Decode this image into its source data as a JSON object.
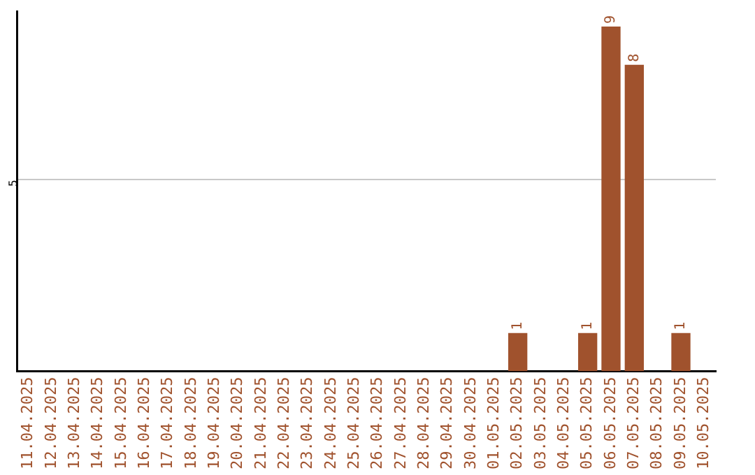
{
  "chart_data": {
    "type": "bar",
    "categories": [
      "11.04.2025",
      "12.04.2025",
      "13.04.2025",
      "14.04.2025",
      "15.04.2025",
      "16.04.2025",
      "17.04.2025",
      "18.04.2025",
      "19.04.2025",
      "20.04.2025",
      "21.04.2025",
      "22.04.2025",
      "23.04.2025",
      "24.04.2025",
      "25.04.2025",
      "26.04.2025",
      "27.04.2025",
      "28.04.2025",
      "29.04.2025",
      "30.04.2025",
      "01.05.2025",
      "02.05.2025",
      "03.05.2025",
      "04.05.2025",
      "05.05.2025",
      "06.05.2025",
      "07.05.2025",
      "08.05.2025",
      "09.05.2025",
      "10.05.2025"
    ],
    "values": [
      null,
      null,
      null,
      null,
      null,
      null,
      null,
      null,
      null,
      null,
      null,
      null,
      null,
      null,
      null,
      null,
      null,
      null,
      null,
      null,
      null,
      1,
      null,
      null,
      1,
      9,
      8,
      null,
      1,
      null
    ],
    "data_labels": true,
    "color": "#a0522d",
    "ylim": [
      0,
      9.4
    ],
    "yticks": [
      5
    ],
    "grid": "y",
    "legend": false
  }
}
